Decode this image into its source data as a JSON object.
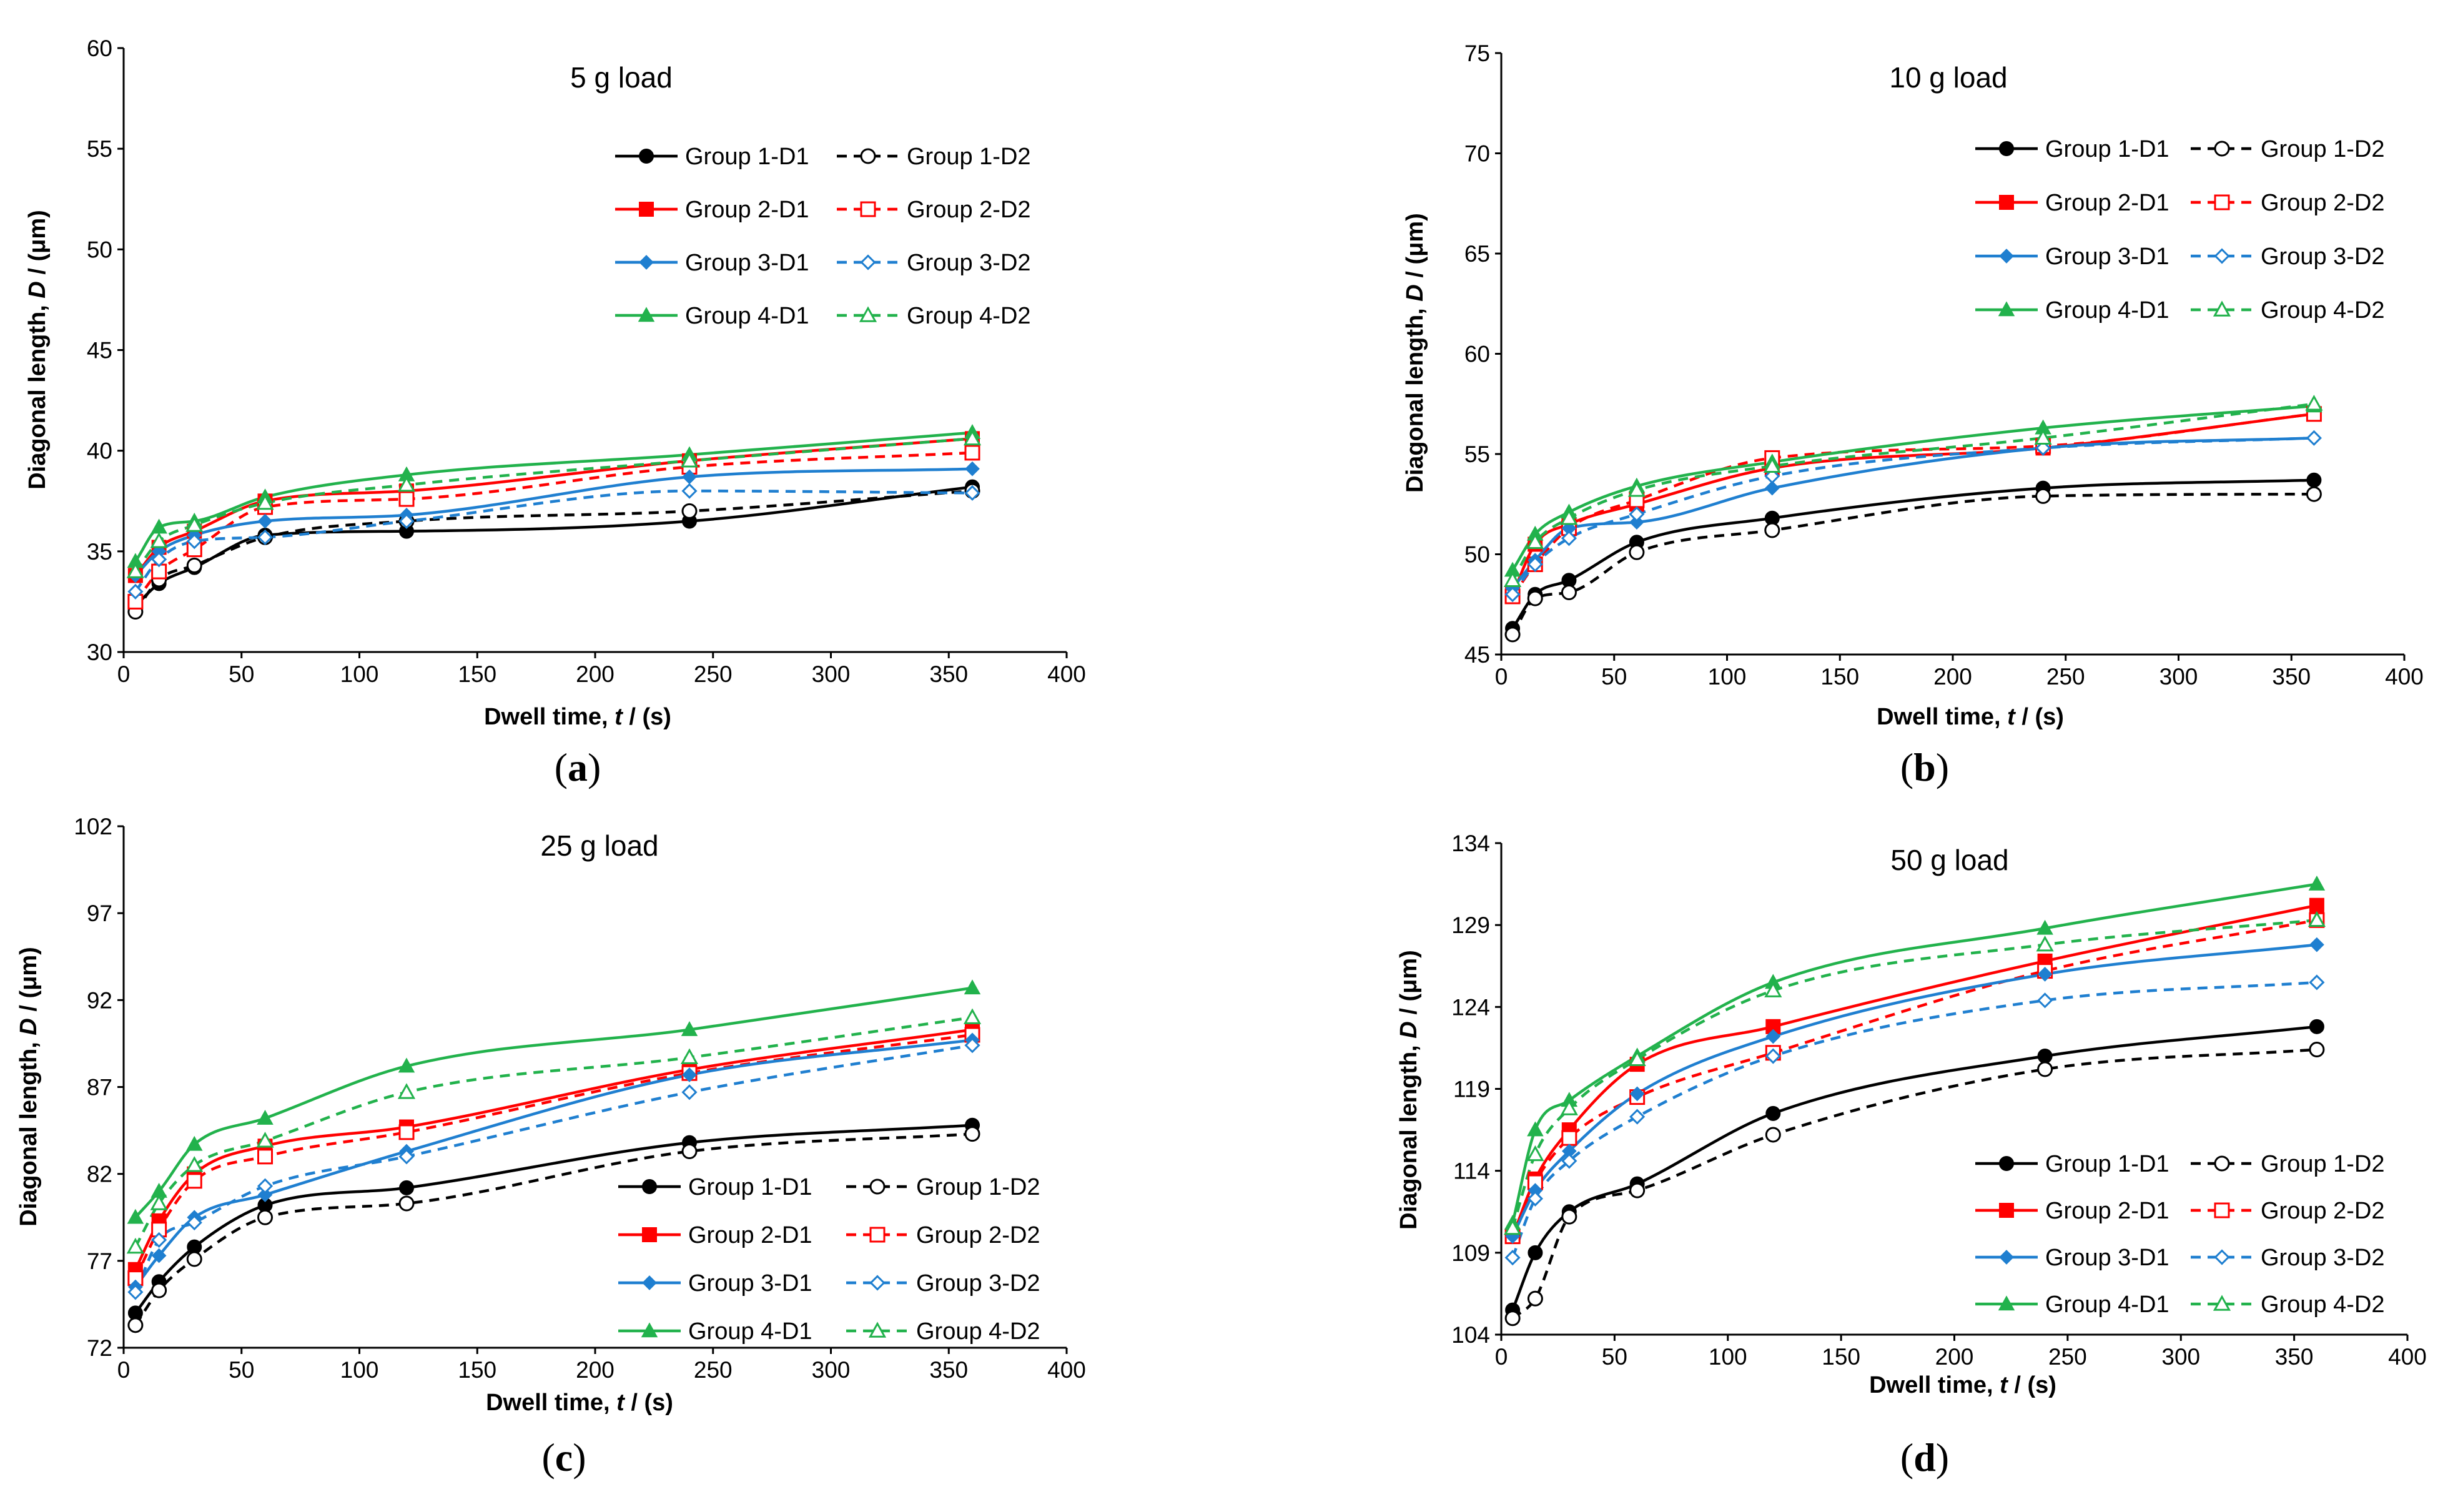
{
  "colors": {
    "Group 1": "#000000",
    "Group 2": "#ff0000",
    "Group 3": "#1f7fd0",
    "Group 4": "#22b24c"
  },
  "chart_data": [
    {
      "type": "line",
      "title": "5 g load",
      "caption": "a",
      "xlabel": "Dwell time, ",
      "xlabel_italic": "t",
      "xlabel_unit": " / (s)",
      "ylabel": "Diagonal length, ",
      "ylabel_italic": "D",
      "ylabel_unit": " / (μm)",
      "xlim": [
        0,
        400
      ],
      "ylim": [
        30,
        60
      ],
      "xticks": [
        "0",
        "50",
        "100",
        "150",
        "200",
        "250",
        "300",
        "350",
        "400"
      ],
      "yticks": [
        "30",
        "35",
        "40",
        "45",
        "50",
        "55",
        "60"
      ],
      "legend_position": "top-right",
      "x": [
        5,
        15,
        30,
        60,
        120,
        240,
        360
      ],
      "series": [
        {
          "name": "Group 1-D1",
          "group": "Group 1",
          "style": "solid",
          "values": [
            32.3,
            33.4,
            34.2,
            35.8,
            36.0,
            36.5,
            38.2
          ]
        },
        {
          "name": "Group 1-D2",
          "group": "Group 1",
          "style": "dashed",
          "values": [
            32.0,
            33.6,
            34.3,
            35.7,
            36.5,
            37.0,
            38.0
          ]
        },
        {
          "name": "Group 2-D1",
          "group": "Group 2",
          "style": "solid",
          "values": [
            33.8,
            35.2,
            36.0,
            37.5,
            38.0,
            39.5,
            40.6
          ]
        },
        {
          "name": "Group 2-D2",
          "group": "Group 2",
          "style": "dashed",
          "values": [
            32.5,
            34.0,
            35.1,
            37.2,
            37.6,
            39.2,
            39.9
          ]
        },
        {
          "name": "Group 3-D1",
          "group": "Group 3",
          "style": "solid",
          "values": [
            33.8,
            35.0,
            35.8,
            36.5,
            36.8,
            38.7,
            39.1
          ]
        },
        {
          "name": "Group 3-D2",
          "group": "Group 3",
          "style": "dashed",
          "values": [
            33.0,
            34.6,
            35.5,
            35.7,
            36.5,
            38.0,
            37.9
          ]
        },
        {
          "name": "Group 4-D1",
          "group": "Group 4",
          "style": "solid",
          "values": [
            34.5,
            36.2,
            36.5,
            37.7,
            38.8,
            39.8,
            40.9
          ]
        },
        {
          "name": "Group 4-D2",
          "group": "Group 4",
          "style": "dashed",
          "values": [
            34.0,
            35.5,
            36.3,
            37.4,
            38.3,
            39.5,
            40.6
          ]
        }
      ]
    },
    {
      "type": "line",
      "title": "10 g load",
      "caption": "b",
      "xlabel": "Dwell time, ",
      "xlabel_italic": "t",
      "xlabel_unit": " / (s)",
      "ylabel": "Diagonal length, ",
      "ylabel_italic": "D",
      "ylabel_unit": " / (μm)",
      "xlim": [
        0,
        400
      ],
      "ylim": [
        45,
        75
      ],
      "xticks": [
        "0",
        "50",
        "100",
        "150",
        "200",
        "250",
        "300",
        "350",
        "400"
      ],
      "yticks": [
        "45",
        "50",
        "55",
        "60",
        "65",
        "70",
        "75"
      ],
      "legend_position": "top-right",
      "x": [
        5,
        15,
        30,
        60,
        120,
        240,
        360
      ],
      "series": [
        {
          "name": "Group 1-D1",
          "group": "Group 1",
          "style": "solid",
          "values": [
            46.3,
            48.0,
            48.7,
            50.6,
            51.8,
            53.3,
            53.7
          ]
        },
        {
          "name": "Group 1-D2",
          "group": "Group 1",
          "style": "dashed",
          "values": [
            46.0,
            47.8,
            48.1,
            50.1,
            51.2,
            52.9,
            53.0
          ]
        },
        {
          "name": "Group 2-D1",
          "group": "Group 2",
          "style": "solid",
          "values": [
            48.0,
            50.5,
            51.5,
            52.5,
            54.3,
            55.3,
            57.0
          ]
        },
        {
          "name": "Group 2-D2",
          "group": "Group 2",
          "style": "dashed",
          "values": [
            47.9,
            49.5,
            51.3,
            52.7,
            54.8,
            55.4,
            57.0
          ]
        },
        {
          "name": "Group 3-D1",
          "group": "Group 3",
          "style": "solid",
          "values": [
            48.3,
            49.7,
            51.3,
            51.6,
            53.3,
            55.3,
            55.8
          ]
        },
        {
          "name": "Group 3-D2",
          "group": "Group 3",
          "style": "dashed",
          "values": [
            48.0,
            49.5,
            50.8,
            52.0,
            53.9,
            55.3,
            55.8
          ]
        },
        {
          "name": "Group 4-D1",
          "group": "Group 4",
          "style": "solid",
          "values": [
            49.2,
            51.0,
            52.1,
            53.4,
            54.6,
            56.3,
            57.4
          ]
        },
        {
          "name": "Group 4-D2",
          "group": "Group 4",
          "style": "dashed",
          "values": [
            48.7,
            50.6,
            51.8,
            53.2,
            54.4,
            55.8,
            57.5
          ]
        }
      ]
    },
    {
      "type": "line",
      "title": "25 g load",
      "caption": "c",
      "xlabel": "Dwell time, ",
      "xlabel_italic": "t",
      "xlabel_unit": " / (s)",
      "ylabel": "Diagonal length, ",
      "ylabel_italic": "D",
      "ylabel_unit": " / (μm)",
      "xlim": [
        0,
        400
      ],
      "ylim": [
        72,
        102
      ],
      "xticks": [
        "0",
        "50",
        "100",
        "150",
        "200",
        "250",
        "300",
        "350",
        "400"
      ],
      "yticks": [
        "72",
        "77",
        "82",
        "87",
        "92",
        "97",
        "102"
      ],
      "legend_position": "bottom-right",
      "x": [
        5,
        15,
        30,
        60,
        120,
        240,
        360
      ],
      "series": [
        {
          "name": "Group 1-D1",
          "group": "Group 1",
          "style": "solid",
          "values": [
            74.0,
            75.8,
            77.8,
            80.2,
            81.2,
            83.8,
            84.8
          ]
        },
        {
          "name": "Group 1-D2",
          "group": "Group 1",
          "style": "dashed",
          "values": [
            73.3,
            75.3,
            77.1,
            79.5,
            80.3,
            83.3,
            84.3
          ]
        },
        {
          "name": "Group 2-D1",
          "group": "Group 2",
          "style": "solid",
          "values": [
            76.5,
            79.3,
            82.0,
            83.6,
            84.7,
            88.0,
            90.3
          ]
        },
        {
          "name": "Group 2-D2",
          "group": "Group 2",
          "style": "dashed",
          "values": [
            76.0,
            78.8,
            81.6,
            83.0,
            84.4,
            87.8,
            90.0
          ]
        },
        {
          "name": "Group 3-D1",
          "group": "Group 3",
          "style": "solid",
          "values": [
            75.5,
            77.3,
            79.5,
            80.8,
            83.3,
            87.7,
            89.7
          ]
        },
        {
          "name": "Group 3-D2",
          "group": "Group 3",
          "style": "dashed",
          "values": [
            75.2,
            78.2,
            79.2,
            81.3,
            83.0,
            86.7,
            89.4
          ]
        },
        {
          "name": "Group 4-D1",
          "group": "Group 4",
          "style": "solid",
          "values": [
            79.5,
            81.0,
            83.7,
            85.2,
            88.2,
            90.3,
            92.7
          ]
        },
        {
          "name": "Group 4-D2",
          "group": "Group 4",
          "style": "dashed",
          "values": [
            77.8,
            80.3,
            82.5,
            83.9,
            86.7,
            88.7,
            91.0
          ]
        }
      ]
    },
    {
      "type": "line",
      "title": "50 g load",
      "caption": "d",
      "xlabel": "Dwell time, ",
      "xlabel_italic": "t",
      "xlabel_unit": " / (s)",
      "ylabel": "Diagonal length, ",
      "ylabel_italic": "D",
      "ylabel_unit": " / (μm)",
      "xlim": [
        0,
        400
      ],
      "ylim": [
        104,
        134
      ],
      "xticks": [
        "0",
        "50",
        "100",
        "150",
        "200",
        "250",
        "300",
        "350",
        "400"
      ],
      "yticks": [
        "104",
        "109",
        "114",
        "119",
        "124",
        "129",
        "134"
      ],
      "legend_position": "bottom-right",
      "x": [
        5,
        15,
        30,
        60,
        120,
        240,
        360
      ],
      "series": [
        {
          "name": "Group 1-D1",
          "group": "Group 1",
          "style": "solid",
          "values": [
            105.5,
            109.0,
            111.5,
            113.2,
            117.5,
            121.0,
            122.8
          ]
        },
        {
          "name": "Group 1-D2",
          "group": "Group 1",
          "style": "dashed",
          "values": [
            105.0,
            106.2,
            111.2,
            112.8,
            116.2,
            120.2,
            121.4
          ]
        },
        {
          "name": "Group 2-D1",
          "group": "Group 2",
          "style": "solid",
          "values": [
            110.0,
            113.5,
            116.5,
            120.5,
            122.8,
            126.8,
            130.2
          ]
        },
        {
          "name": "Group 2-D2",
          "group": "Group 2",
          "style": "dashed",
          "values": [
            110.0,
            113.3,
            116.0,
            118.5,
            121.2,
            126.2,
            129.3
          ]
        },
        {
          "name": "Group 3-D1",
          "group": "Group 3",
          "style": "solid",
          "values": [
            110.0,
            112.8,
            115.2,
            118.7,
            122.2,
            126.0,
            127.8
          ]
        },
        {
          "name": "Group 3-D2",
          "group": "Group 3",
          "style": "dashed",
          "values": [
            108.7,
            112.3,
            114.6,
            117.3,
            121.0,
            124.4,
            125.5
          ]
        },
        {
          "name": "Group 4-D1",
          "group": "Group 4",
          "style": "solid",
          "values": [
            110.8,
            116.5,
            118.3,
            121.0,
            125.5,
            128.8,
            131.5
          ]
        },
        {
          "name": "Group 4-D2",
          "group": "Group 4",
          "style": "dashed",
          "values": [
            110.5,
            115.0,
            117.8,
            120.8,
            125.0,
            127.8,
            129.3
          ]
        }
      ]
    }
  ]
}
